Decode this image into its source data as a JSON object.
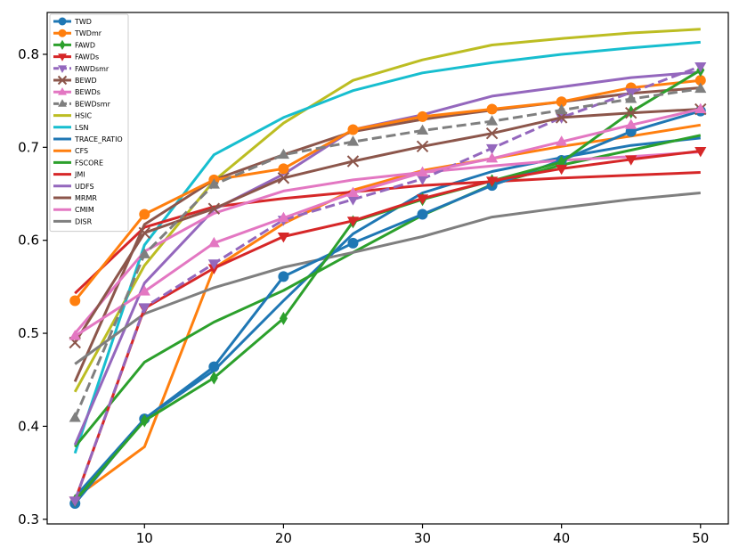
{
  "chart_data": {
    "type": "line",
    "title": "",
    "xlabel": "",
    "ylabel": "",
    "x": [
      5,
      10,
      15,
      20,
      25,
      30,
      35,
      40,
      45,
      50
    ],
    "xlim": [
      3,
      52
    ],
    "ylim": [
      0.295,
      0.845
    ],
    "xticks": [
      10,
      20,
      30,
      40,
      50
    ],
    "yticks": [
      0.3,
      0.4,
      0.5,
      0.6,
      0.7,
      0.8
    ],
    "grid": false,
    "legend_position": "top-left",
    "series": [
      {
        "name": "TWD",
        "color": "#1f77b4",
        "marker": "circle",
        "dash": false,
        "values": [
          0.317,
          0.408,
          0.464,
          0.561,
          0.597,
          0.628,
          0.659,
          0.686,
          0.717,
          0.739
        ]
      },
      {
        "name": "TWDmr",
        "color": "#ff7f0e",
        "marker": "circle",
        "dash": false,
        "values": [
          0.535,
          0.628,
          0.665,
          0.677,
          0.719,
          0.733,
          0.741,
          0.749,
          0.764,
          0.772
        ]
      },
      {
        "name": "FAWD",
        "color": "#2ca02c",
        "marker": "thin_diamond",
        "dash": false,
        "values": [
          0.32,
          0.406,
          0.452,
          0.516,
          0.62,
          0.644,
          0.664,
          0.684,
          0.738,
          0.783
        ]
      },
      {
        "name": "FAWDs",
        "color": "#d62728",
        "marker": "triangle_down",
        "dash": false,
        "values": [
          0.32,
          0.527,
          0.57,
          0.604,
          0.621,
          0.645,
          0.664,
          0.677,
          0.687,
          0.696
        ]
      },
      {
        "name": "FAWDsmr",
        "color": "#9467bd",
        "marker": "triangle_down",
        "dash": true,
        "values": [
          0.32,
          0.528,
          0.575,
          0.622,
          0.644,
          0.666,
          0.699,
          0.732,
          0.759,
          0.787
        ]
      },
      {
        "name": "BEWD",
        "color": "#8c564b",
        "marker": "x",
        "dash": false,
        "values": [
          0.49,
          0.608,
          0.634,
          0.667,
          0.685,
          0.701,
          0.715,
          0.732,
          0.737,
          0.741
        ]
      },
      {
        "name": "BEWDs",
        "color": "#e377c2",
        "marker": "triangle_up",
        "dash": false,
        "values": [
          0.497,
          0.545,
          0.597,
          0.624,
          0.651,
          0.673,
          0.688,
          0.706,
          0.724,
          0.741
        ]
      },
      {
        "name": "BEWDsmr",
        "color": "#7f7f7f",
        "marker": "triangle_up",
        "dash": true,
        "values": [
          0.409,
          0.585,
          0.66,
          0.692,
          0.706,
          0.718,
          0.728,
          0.74,
          0.752,
          0.763
        ]
      },
      {
        "name": "HSIC",
        "color": "#bcbd22",
        "marker": "none",
        "dash": false,
        "values": [
          0.437,
          0.573,
          0.664,
          0.726,
          0.772,
          0.794,
          0.81,
          0.817,
          0.823,
          0.827
        ]
      },
      {
        "name": "LSN",
        "color": "#17becf",
        "marker": "none",
        "dash": false,
        "values": [
          0.371,
          0.595,
          0.692,
          0.732,
          0.761,
          0.78,
          0.791,
          0.8,
          0.807,
          0.813
        ]
      },
      {
        "name": "TRACE_RATIO",
        "color": "#1f77b4",
        "marker": "none",
        "dash": false,
        "values": [
          0.324,
          0.408,
          0.46,
          0.535,
          0.607,
          0.651,
          0.674,
          0.689,
          0.702,
          0.71
        ]
      },
      {
        "name": "CFS",
        "color": "#ff7f0e",
        "marker": "none",
        "dash": false,
        "values": [
          0.323,
          0.378,
          0.57,
          0.618,
          0.654,
          0.675,
          0.688,
          0.701,
          0.712,
          0.724
        ]
      },
      {
        "name": "FSCORE",
        "color": "#2ca02c",
        "marker": "none",
        "dash": false,
        "values": [
          0.378,
          0.469,
          0.512,
          0.546,
          0.587,
          0.627,
          0.66,
          0.681,
          0.697,
          0.713
        ]
      },
      {
        "name": "JMI",
        "color": "#d62728",
        "marker": "none",
        "dash": false,
        "values": [
          0.543,
          0.614,
          0.636,
          0.645,
          0.652,
          0.659,
          0.663,
          0.667,
          0.67,
          0.673
        ]
      },
      {
        "name": "UDFS",
        "color": "#9467bd",
        "marker": "none",
        "dash": false,
        "values": [
          0.38,
          0.554,
          0.633,
          0.671,
          0.719,
          0.735,
          0.755,
          0.765,
          0.775,
          0.781
        ]
      },
      {
        "name": "MRMR",
        "color": "#8c564b",
        "marker": "none",
        "dash": false,
        "values": [
          0.448,
          0.617,
          0.665,
          0.692,
          0.717,
          0.73,
          0.74,
          0.749,
          0.758,
          0.764
        ]
      },
      {
        "name": "CMIM",
        "color": "#e377c2",
        "marker": "none",
        "dash": false,
        "values": [
          0.5,
          0.588,
          0.629,
          0.653,
          0.665,
          0.673,
          0.68,
          0.686,
          0.69,
          0.695
        ]
      },
      {
        "name": "DISR",
        "color": "#7f7f7f",
        "marker": "none",
        "dash": false,
        "values": [
          0.467,
          0.521,
          0.549,
          0.571,
          0.587,
          0.604,
          0.625,
          0.635,
          0.644,
          0.651
        ]
      }
    ]
  }
}
